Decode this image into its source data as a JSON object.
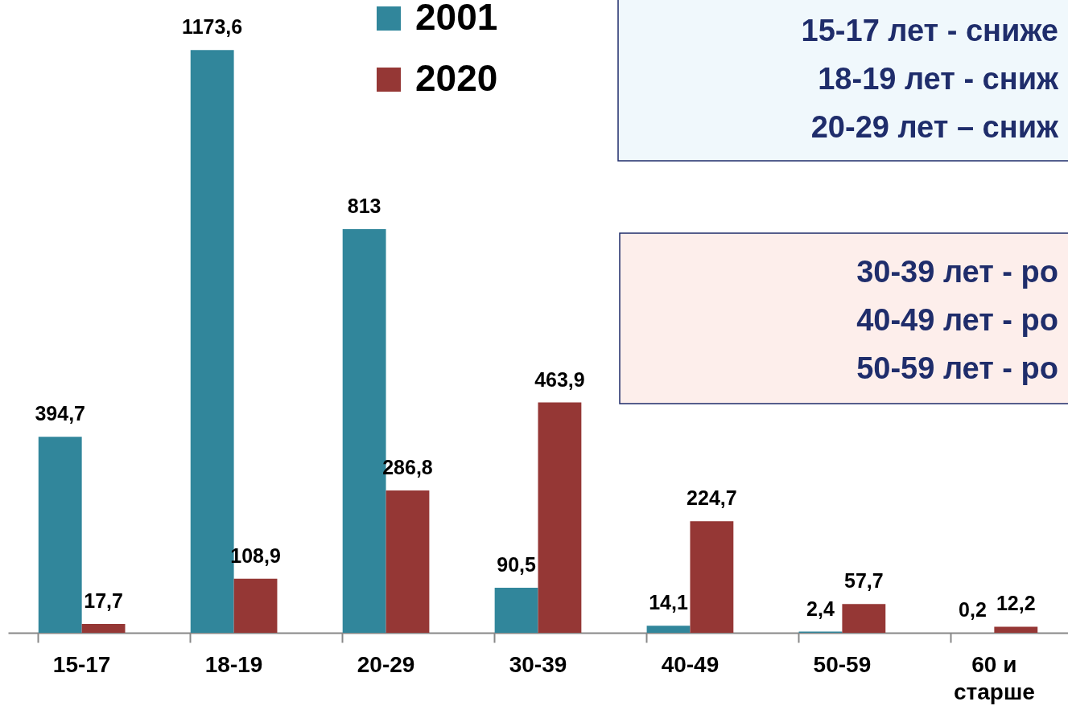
{
  "chart_data": {
    "type": "bar",
    "categories": [
      "15-17",
      "18-19",
      "20-29",
      "30-39",
      "40-49",
      "50-59",
      "60 и старше"
    ],
    "series": [
      {
        "name": "2001",
        "color": "#31869b",
        "values": [
          394.7,
          1173.6,
          813,
          90.5,
          14.1,
          2.4,
          0.2
        ],
        "value_labels": [
          "394,7",
          "1173,6",
          "813",
          "90,5",
          "14,1",
          "2,4",
          "0,2"
        ]
      },
      {
        "name": "2020",
        "color": "#953735",
        "values": [
          17.7,
          108.9,
          286.8,
          463.9,
          224.7,
          57.7,
          12.2
        ],
        "value_labels": [
          "17,7",
          "108,9",
          "286,8",
          "463,9",
          "224,7",
          "57,7",
          "12,2"
        ]
      }
    ],
    "annotations": [
      "15-17 лет - сниже\n18-19 лет - сниж\n20-29 лет – сниж",
      "30-39 лет - ро\n40-49 лет - ро\n50-59 лет - ро"
    ],
    "legend": "top",
    "grid": false
  }
}
